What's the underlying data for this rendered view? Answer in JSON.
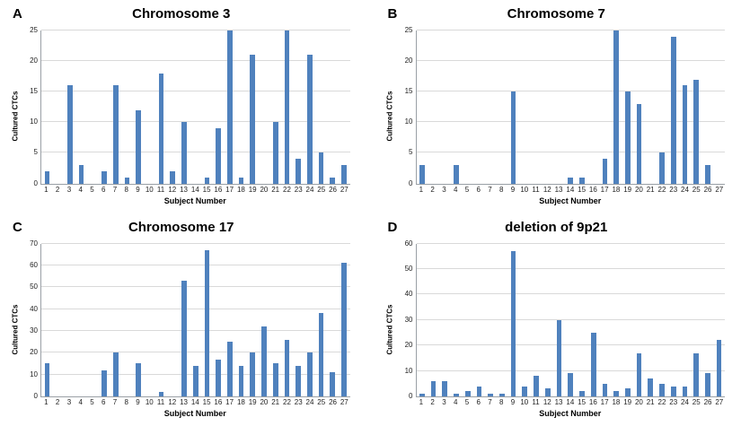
{
  "figure": {
    "bar_color": "#4f81bd",
    "gridline_color": "#d9d9d9",
    "axis_color": "#9aa0a6"
  },
  "chart_data": [
    {
      "panel": "A",
      "type": "bar",
      "title": "Chromosome 3",
      "xlabel": "Subject Number",
      "ylabel": "Cultured CTCs",
      "ylim": [
        0,
        25
      ],
      "yticks": [
        0,
        5,
        10,
        15,
        20,
        25
      ],
      "grid": "horizontal",
      "legend": "none",
      "categories": [
        "1",
        "2",
        "3",
        "4",
        "5",
        "6",
        "7",
        "8",
        "9",
        "10",
        "11",
        "12",
        "13",
        "14",
        "15",
        "16",
        "17",
        "18",
        "19",
        "20",
        "21",
        "22",
        "23",
        "24",
        "25",
        "26",
        "27"
      ],
      "values": [
        2,
        0,
        16,
        3,
        0,
        2,
        16,
        1,
        12,
        0,
        18,
        2,
        10,
        0,
        1,
        9,
        25,
        1,
        21,
        0,
        10,
        25,
        4,
        21,
        5,
        1,
        3
      ]
    },
    {
      "panel": "B",
      "type": "bar",
      "title": "Chromosome 7",
      "xlabel": "Subject Number",
      "ylabel": "Cultured CTCs",
      "ylim": [
        0,
        25
      ],
      "yticks": [
        0,
        5,
        10,
        15,
        20,
        25
      ],
      "grid": "horizontal",
      "legend": "none",
      "categories": [
        "1",
        "2",
        "3",
        "4",
        "5",
        "6",
        "7",
        "8",
        "9",
        "10",
        "11",
        "12",
        "13",
        "14",
        "15",
        "16",
        "17",
        "18",
        "19",
        "20",
        "21",
        "22",
        "23",
        "24",
        "25",
        "26",
        "27"
      ],
      "values": [
        3,
        0,
        0,
        3,
        0,
        0,
        0,
        0,
        15,
        0,
        0,
        0,
        0,
        1,
        1,
        0,
        4,
        25,
        15,
        13,
        0,
        5,
        24,
        16,
        17,
        3,
        0
      ]
    },
    {
      "panel": "C",
      "type": "bar",
      "title": "Chromosome 17",
      "xlabel": "Subject Number",
      "ylabel": "Cultured CTCs",
      "ylim": [
        0,
        70
      ],
      "yticks": [
        0,
        10,
        20,
        30,
        40,
        50,
        60,
        70
      ],
      "grid": "horizontal",
      "legend": "none",
      "categories": [
        "1",
        "2",
        "3",
        "4",
        "5",
        "6",
        "7",
        "8",
        "9",
        "10",
        "11",
        "12",
        "13",
        "14",
        "15",
        "16",
        "17",
        "18",
        "19",
        "20",
        "21",
        "22",
        "23",
        "24",
        "25",
        "26",
        "27"
      ],
      "values": [
        15,
        0,
        0,
        0,
        0,
        12,
        20,
        0,
        15,
        0,
        2,
        0,
        53,
        14,
        67,
        17,
        25,
        14,
        20,
        32,
        15,
        26,
        14,
        20,
        38,
        11,
        61
      ]
    },
    {
      "panel": "D",
      "type": "bar",
      "title": "deletion of 9p21",
      "xlabel": "Subject Number",
      "ylabel": "Cultured CTCs",
      "ylim": [
        0,
        60
      ],
      "yticks": [
        0,
        10,
        20,
        30,
        40,
        50,
        60
      ],
      "grid": "horizontal",
      "legend": "none",
      "categories": [
        "1",
        "2",
        "3",
        "4",
        "5",
        "6",
        "7",
        "8",
        "9",
        "10",
        "11",
        "12",
        "13",
        "14",
        "15",
        "16",
        "17",
        "18",
        "19",
        "20",
        "21",
        "22",
        "23",
        "24",
        "25",
        "26",
        "27"
      ],
      "values": [
        1,
        6,
        6,
        1,
        2,
        4,
        1,
        1,
        57,
        4,
        8,
        3,
        30,
        9,
        2,
        25,
        5,
        2,
        3,
        17,
        7,
        5,
        4,
        4,
        17,
        9,
        22
      ]
    }
  ]
}
